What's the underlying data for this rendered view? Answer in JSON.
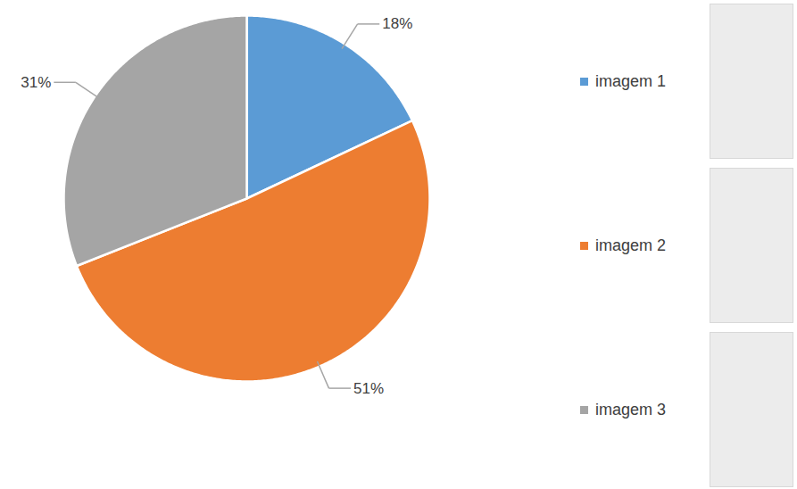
{
  "chart_data": {
    "type": "pie",
    "categories": [
      "imagem 1",
      "imagem 2",
      "imagem 3"
    ],
    "values": [
      18,
      51,
      31
    ],
    "value_labels": [
      "18%",
      "51%",
      "31%"
    ],
    "colors": [
      "#5b9bd5",
      "#ed7d31",
      "#a5a5a5"
    ],
    "data_labels": true,
    "legend": "right"
  }
}
